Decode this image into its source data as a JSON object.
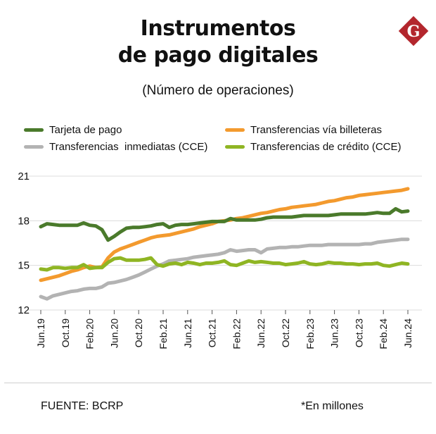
{
  "header": {
    "title_line1": "Instrumentos",
    "title_line2": "de pago digitales",
    "subtitle": "(Número de operaciones)",
    "logo_letter": "G"
  },
  "colors": {
    "dark_green": "#4a7a2b",
    "orange": "#f39a2e",
    "gray": "#b3b3b3",
    "lime": "#8fb523",
    "logo_red": "#b3262d",
    "grid": "#dcdcdc"
  },
  "footer": {
    "source": "FUENTE: BCRP",
    "note": "*En millones"
  },
  "chart_data": {
    "type": "line",
    "title": "Instrumentos de pago digitales",
    "subtitle": "(Número de operaciones)",
    "xlabel": "",
    "ylabel": "",
    "ylim": [
      12,
      21
    ],
    "yticks": [
      12,
      15,
      18,
      21
    ],
    "grid": "horizontal",
    "legend": "top",
    "x": [
      "Jun.19",
      "Jul.19",
      "Ago.19",
      "Sep.19",
      "Oct.19",
      "Nov.19",
      "Dic.19",
      "Ene.20",
      "Feb.20",
      "Mar.20",
      "Abr.20",
      "May.20",
      "Jun.20",
      "Jul.20",
      "Ago.20",
      "Sep.20",
      "Oct.20",
      "Nov.20",
      "Dic.20",
      "Ene.21",
      "Feb.21",
      "Mar.21",
      "Abr.21",
      "May.21",
      "Jun.21",
      "Jul.21",
      "Ago.21",
      "Sep.21",
      "Oct.21",
      "Nov.21",
      "Dic.21",
      "Ene.22",
      "Feb.22",
      "Mar.22",
      "Abr.22",
      "May.22",
      "Jun.22",
      "Jul.22",
      "Ago.22",
      "Sep.22",
      "Oct.22",
      "Nov.22",
      "Dic.22",
      "Ene.23",
      "Feb.23",
      "Mar.23",
      "Abr.23",
      "May.23",
      "Jun.23",
      "Jul.23",
      "Ago.23",
      "Sep.23",
      "Oct.23",
      "Nov.23",
      "Dic.23",
      "Ene.24",
      "Feb.24",
      "Mar.24",
      "Abr.24",
      "May.24",
      "Jun.24"
    ],
    "tick_labels": [
      {
        "index": 0,
        "label": "Jun.19"
      },
      {
        "index": 4,
        "label": "Oct.19"
      },
      {
        "index": 8,
        "label": "Feb.20"
      },
      {
        "index": 12,
        "label": "Jun.20"
      },
      {
        "index": 16,
        "label": "Oct.20"
      },
      {
        "index": 20,
        "label": "Feb.21"
      },
      {
        "index": 24,
        "label": "Jun.21"
      },
      {
        "index": 28,
        "label": "Oct.21"
      },
      {
        "index": 32,
        "label": "Feb.22"
      },
      {
        "index": 36,
        "label": "Jun.22"
      },
      {
        "index": 40,
        "label": "Oct.22"
      },
      {
        "index": 44,
        "label": "Feb.23"
      },
      {
        "index": 48,
        "label": "Jun.23"
      },
      {
        "index": 52,
        "label": "Oct.23"
      },
      {
        "index": 56,
        "label": "Feb.24"
      },
      {
        "index": 60,
        "label": "Jun.24"
      }
    ],
    "series": [
      {
        "name": "Tarjeta de pago",
        "color": "#4a7a2b",
        "values": [
          17.6,
          17.8,
          17.75,
          17.7,
          17.7,
          17.7,
          17.7,
          17.85,
          17.7,
          17.65,
          17.4,
          16.7,
          16.95,
          17.25,
          17.5,
          17.55,
          17.55,
          17.6,
          17.65,
          17.75,
          17.8,
          17.55,
          17.7,
          17.75,
          17.75,
          17.8,
          17.85,
          17.9,
          17.95,
          17.95,
          17.95,
          18.15,
          18.05,
          18.05,
          18.05,
          18.05,
          18.1,
          18.2,
          18.25,
          18.25,
          18.25,
          18.25,
          18.3,
          18.35,
          18.35,
          18.35,
          18.35,
          18.35,
          18.4,
          18.45,
          18.45,
          18.45,
          18.45,
          18.45,
          18.5,
          18.55,
          18.5,
          18.5,
          18.8,
          18.6,
          18.65
        ]
      },
      {
        "name": "Transferencias vía billeteras",
        "color": "#f39a2e",
        "values": [
          14,
          14.1,
          14.2,
          14.3,
          14.45,
          14.6,
          14.7,
          14.85,
          14.95,
          14.85,
          14.9,
          15.5,
          15.9,
          16.1,
          16.25,
          16.4,
          16.55,
          16.7,
          16.85,
          16.95,
          17,
          17.05,
          17.15,
          17.25,
          17.35,
          17.45,
          17.6,
          17.7,
          17.8,
          17.95,
          18,
          18.05,
          18.15,
          18.2,
          18.3,
          18.4,
          18.5,
          18.55,
          18.65,
          18.75,
          18.8,
          18.9,
          18.95,
          19,
          19.05,
          19.1,
          19.2,
          19.3,
          19.35,
          19.45,
          19.55,
          19.6,
          19.7,
          19.75,
          19.8,
          19.85,
          19.9,
          19.95,
          20,
          20.05,
          20.15
        ]
      },
      {
        "name": "Transferencias  inmediatas (CCE)",
        "color": "#b3b3b3",
        "values": [
          12.9,
          12.75,
          12.95,
          13.05,
          13.15,
          13.25,
          13.3,
          13.4,
          13.45,
          13.45,
          13.55,
          13.8,
          13.85,
          13.95,
          14.05,
          14.2,
          14.35,
          14.55,
          14.75,
          14.95,
          15.1,
          15.3,
          15.35,
          15.4,
          15.45,
          15.55,
          15.6,
          15.65,
          15.7,
          15.75,
          15.85,
          16.05,
          15.95,
          16,
          16.05,
          16.05,
          15.85,
          16.1,
          16.15,
          16.2,
          16.2,
          16.25,
          16.25,
          16.3,
          16.35,
          16.35,
          16.35,
          16.4,
          16.4,
          16.4,
          16.4,
          16.4,
          16.4,
          16.45,
          16.45,
          16.55,
          16.6,
          16.65,
          16.7,
          16.75,
          16.75
        ]
      },
      {
        "name": "Transferencias de crédito (CCE)",
        "color": "#8fb523",
        "values": [
          14.75,
          14.7,
          14.85,
          14.85,
          14.8,
          14.85,
          14.85,
          15.05,
          14.8,
          14.85,
          14.85,
          15.2,
          15.45,
          15.5,
          15.35,
          15.35,
          15.35,
          15.4,
          15.5,
          15.05,
          14.95,
          15.1,
          15.15,
          15.05,
          15.2,
          15.15,
          15.05,
          15.15,
          15.15,
          15.2,
          15.3,
          15.05,
          15.0,
          15.15,
          15.3,
          15.2,
          15.25,
          15.2,
          15.15,
          15.15,
          15.05,
          15.1,
          15.15,
          15.25,
          15.1,
          15.05,
          15.1,
          15.2,
          15.15,
          15.15,
          15.1,
          15.1,
          15.05,
          15.1,
          15.1,
          15.15,
          15.0,
          14.95,
          15.05,
          15.15,
          15.1
        ]
      }
    ]
  }
}
